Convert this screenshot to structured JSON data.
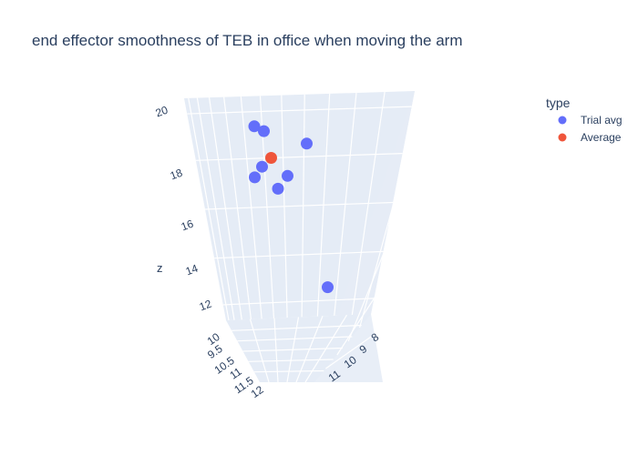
{
  "chart_data": {
    "type": "scatter",
    "title": "end effector smoothness of TEB in office when moving the arm",
    "axes": {
      "x": {
        "ticks": [
          "10",
          "9.5",
          "10.5",
          "11",
          "11.5",
          "12"
        ]
      },
      "y": {
        "ticks": [
          "8",
          "9",
          "10",
          "11"
        ]
      },
      "z": {
        "label": "z",
        "ticks": [
          "12",
          "14",
          "16",
          "18",
          "20"
        ],
        "range": [
          11,
          20.5
        ]
      }
    },
    "legend": {
      "title": "type",
      "placement": "top-right"
    },
    "series": [
      {
        "name": "Trial avg",
        "color": "#636efa",
        "points": [
          {
            "x": 10.3,
            "y": 9.0,
            "z": 19.6
          },
          {
            "x": 10.4,
            "y": 9.1,
            "z": 19.3
          },
          {
            "x": 11.0,
            "y": 9.5,
            "z": 18.4
          },
          {
            "x": 10.0,
            "y": 9.2,
            "z": 17.6
          },
          {
            "x": 10.0,
            "y": 9.1,
            "z": 17.2
          },
          {
            "x": 10.8,
            "y": 9.3,
            "z": 17.1
          },
          {
            "x": 10.7,
            "y": 9.2,
            "z": 16.6
          },
          {
            "x": 11.6,
            "y": 9.6,
            "z": 11.8
          }
        ]
      },
      {
        "name": "Average",
        "color": "#ef553b",
        "points": [
          {
            "x": 10.4,
            "y": 9.2,
            "z": 18.0
          }
        ]
      }
    ]
  }
}
